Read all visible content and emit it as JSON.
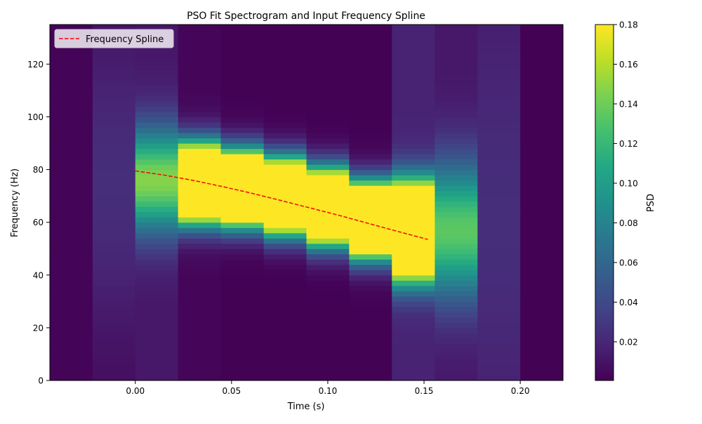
{
  "chart_data": {
    "type": "heatmap",
    "title": "PSO Fit Spectrogram and Input Frequency Spline",
    "xlabel": "Time (s)",
    "ylabel": "Frequency (Hz)",
    "xlim": [
      -0.0444,
      0.2222
    ],
    "ylim": [
      0,
      135
    ],
    "xticks": [
      0.0,
      0.05,
      0.1,
      0.15,
      0.2
    ],
    "xtick_labels": [
      "0.00",
      "0.05",
      "0.10",
      "0.15",
      "0.20"
    ],
    "yticks": [
      0,
      20,
      40,
      60,
      80,
      100,
      120
    ],
    "ytick_labels": [
      "0",
      "20",
      "40",
      "60",
      "80",
      "100",
      "120"
    ],
    "grid": false,
    "legend_position": "top-left",
    "colormap": "viridis",
    "colorbar": {
      "label": "PSD",
      "vmin": 0.0005,
      "vmax": 0.18,
      "ticks": [
        0.02,
        0.04,
        0.06,
        0.08,
        0.1,
        0.12,
        0.14,
        0.16,
        0.18
      ],
      "tick_labels": [
        "0.02",
        "0.04",
        "0.06",
        "0.08",
        "0.10",
        "0.12",
        "0.14",
        "0.16",
        "0.18"
      ]
    },
    "time_bin_edges": [
      -0.0444,
      -0.0222,
      0.0,
      0.0222,
      0.0444,
      0.0667,
      0.0889,
      0.1111,
      0.1333,
      0.1556,
      0.1778,
      0.2,
      0.2222
    ],
    "frequency_bin_width": 2.0,
    "time_columns": [
      {
        "center": -0.0333,
        "kind": "flat",
        "base": 0.002
      },
      {
        "center": -0.0111,
        "kind": "bell",
        "peak_freq": 75,
        "amp": 0.02,
        "sigma": 40,
        "base": 0.004
      },
      {
        "center": 0.0111,
        "kind": "bell",
        "peak_freq": 76,
        "amp": 0.135,
        "sigma": 14,
        "base": 0.012
      },
      {
        "center": 0.0333,
        "kind": "bell",
        "peak_freq": 75,
        "amp": 0.5,
        "sigma": 9,
        "base": 0.003
      },
      {
        "center": 0.0556,
        "kind": "bell",
        "peak_freq": 73,
        "amp": 0.5,
        "sigma": 8.5,
        "base": 0.001
      },
      {
        "center": 0.0778,
        "kind": "bell",
        "peak_freq": 70,
        "amp": 0.5,
        "sigma": 8.5,
        "base": 0.001
      },
      {
        "center": 0.1,
        "kind": "bell",
        "peak_freq": 66,
        "amp": 0.5,
        "sigma": 8.5,
        "base": 0.001
      },
      {
        "center": 0.1222,
        "kind": "bell",
        "peak_freq": 61,
        "amp": 0.5,
        "sigma": 8.5,
        "base": 0.001
      },
      {
        "center": 0.1444,
        "kind": "bell",
        "peak_freq": 57,
        "amp": 0.5,
        "sigma": 11,
        "base": 0.018
      },
      {
        "center": 0.1667,
        "kind": "bell",
        "peak_freq": 57,
        "amp": 0.122,
        "sigma": 18,
        "base": 0.012
      },
      {
        "center": 0.1889,
        "kind": "bell",
        "peak_freq": 60,
        "amp": 0.012,
        "sigma": 50,
        "base": 0.012
      },
      {
        "center": 0.2111,
        "kind": "flat",
        "base": 0.001
      }
    ],
    "series": [
      {
        "name": "Frequency Spline",
        "style": "dashed",
        "color": "#ff0000",
        "x": [
          0.0,
          0.015,
          0.03,
          0.045,
          0.06,
          0.075,
          0.09,
          0.105,
          0.12,
          0.135,
          0.152
        ],
        "y": [
          79.5,
          77.9,
          75.9,
          73.6,
          71.1,
          68.4,
          65.6,
          62.8,
          59.8,
          56.8,
          53.5
        ]
      }
    ]
  }
}
